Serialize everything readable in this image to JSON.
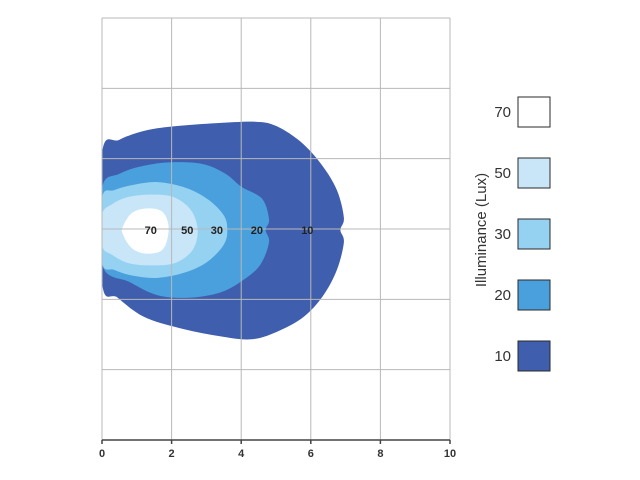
{
  "chart_data": {
    "type": "heatmap",
    "xlim": [
      0,
      10
    ],
    "ylim": [
      -3,
      3
    ],
    "x_ticks": [
      0,
      2,
      4,
      6,
      8,
      10
    ],
    "y_ticks": [],
    "grid": true,
    "xlabel": "",
    "ylabel": "",
    "legend": {
      "title": "Illuminance (Lux)",
      "placement": "right",
      "items": [
        {
          "label": "70",
          "color": "#ffffff"
        },
        {
          "label": "50",
          "color": "#c8e6f8"
        },
        {
          "label": "30",
          "color": "#95d2f2"
        },
        {
          "label": "20",
          "color": "#4aa0dc"
        },
        {
          "label": "10",
          "color": "#3f5fae"
        }
      ]
    },
    "contour_labels": [
      {
        "text": "70",
        "x": 1.4,
        "y": 0
      },
      {
        "text": "50",
        "x": 2.45,
        "y": 0
      },
      {
        "text": "30",
        "x": 3.3,
        "y": 0
      },
      {
        "text": "20",
        "x": 4.45,
        "y": 0
      },
      {
        "text": "10",
        "x": 5.9,
        "y": 0
      }
    ],
    "contours": [
      {
        "level": "10",
        "color": "#3f5fae",
        "points": [
          [
            0,
            2.2
          ],
          [
            0.5,
            2.6
          ],
          [
            1.3,
            2.88
          ],
          [
            2.2,
            3.0
          ],
          [
            3.3,
            3.08
          ],
          [
            4.4,
            3.12
          ],
          [
            5.0,
            3.0
          ],
          [
            5.7,
            2.55
          ],
          [
            6.3,
            1.9
          ],
          [
            6.75,
            1.15
          ],
          [
            6.95,
            0.35
          ],
          [
            6.85,
            0
          ],
          [
            6.95,
            -0.35
          ],
          [
            6.75,
            -1.15
          ],
          [
            6.35,
            -1.9
          ],
          [
            5.8,
            -2.5
          ],
          [
            5.1,
            -2.9
          ],
          [
            4.3,
            -3.15
          ],
          [
            3.3,
            -3.05
          ],
          [
            2.2,
            -2.82
          ],
          [
            1.2,
            -2.5
          ],
          [
            0.45,
            -1.95
          ],
          [
            0,
            -1.5
          ]
        ]
      },
      {
        "level": "20",
        "color": "#4aa0dc",
        "points": [
          [
            0,
            1.2
          ],
          [
            0.5,
            1.62
          ],
          [
            1.2,
            1.85
          ],
          [
            2.0,
            1.95
          ],
          [
            2.9,
            1.9
          ],
          [
            3.55,
            1.62
          ],
          [
            4.0,
            1.25
          ],
          [
            4.6,
            0.9
          ],
          [
            4.8,
            0.3
          ],
          [
            4.7,
            0
          ],
          [
            4.8,
            -0.35
          ],
          [
            4.55,
            -1.0
          ],
          [
            4.05,
            -1.45
          ],
          [
            3.4,
            -1.8
          ],
          [
            2.5,
            -1.95
          ],
          [
            1.6,
            -1.88
          ],
          [
            0.8,
            -1.5
          ],
          [
            0,
            -1.0
          ]
        ]
      },
      {
        "level": "30",
        "color": "#95d2f2",
        "points": [
          [
            0,
            0.92
          ],
          [
            0.35,
            1.15
          ],
          [
            0.9,
            1.3
          ],
          [
            1.6,
            1.38
          ],
          [
            2.4,
            1.22
          ],
          [
            3.05,
            0.88
          ],
          [
            3.5,
            0.42
          ],
          [
            3.6,
            0
          ],
          [
            3.5,
            -0.42
          ],
          [
            3.05,
            -0.9
          ],
          [
            2.4,
            -1.22
          ],
          [
            1.6,
            -1.38
          ],
          [
            0.9,
            -1.32
          ],
          [
            0.35,
            -1.15
          ],
          [
            0,
            -0.92
          ]
        ]
      },
      {
        "level": "50",
        "color": "#c8e6f8",
        "points": [
          [
            0,
            0.45
          ],
          [
            0.3,
            0.75
          ],
          [
            0.75,
            0.95
          ],
          [
            1.4,
            1.02
          ],
          [
            2.05,
            0.95
          ],
          [
            2.55,
            0.58
          ],
          [
            2.75,
            0
          ],
          [
            2.6,
            -0.58
          ],
          [
            2.1,
            -0.95
          ],
          [
            1.4,
            -1.02
          ],
          [
            0.75,
            -0.95
          ],
          [
            0.3,
            -0.72
          ],
          [
            0,
            -0.45
          ]
        ]
      },
      {
        "level": "70",
        "color": "#ffffff",
        "points": [
          [
            0.6,
            0.1
          ],
          [
            0.85,
            0.48
          ],
          [
            1.25,
            0.62
          ],
          [
            1.7,
            0.55
          ],
          [
            1.9,
            0.2
          ],
          [
            1.88,
            -0.25
          ],
          [
            1.7,
            -0.6
          ],
          [
            1.25,
            -0.68
          ],
          [
            0.85,
            -0.52
          ],
          [
            0.6,
            -0.12
          ]
        ]
      }
    ]
  }
}
